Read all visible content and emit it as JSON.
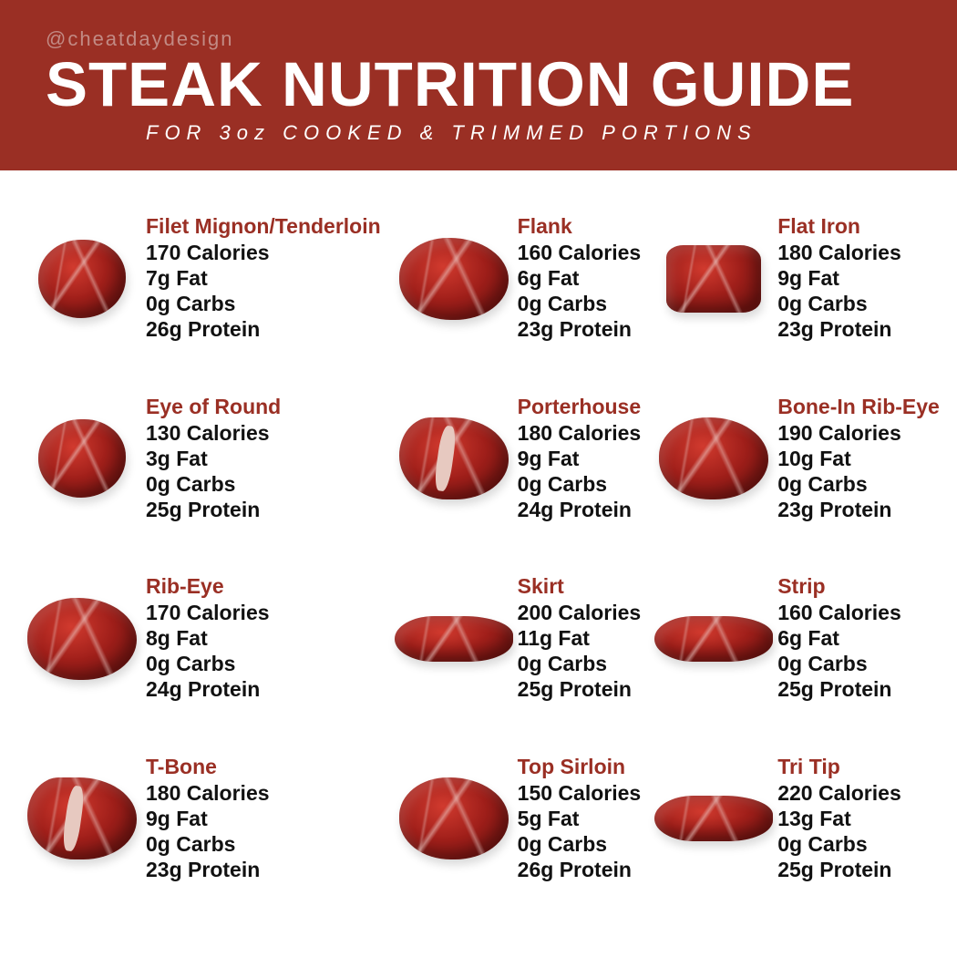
{
  "header": {
    "handle": "@cheatdaydesign",
    "title": "STEAK NUTRITION GUIDE",
    "subtitle": "FOR 3oz COOKED & TRIMMED PORTIONS",
    "background_color": "#9a2f24",
    "handle_color": "#c28a84",
    "title_color": "#ffffff",
    "title_fontsize": 69,
    "subtitle_fontsize": 22
  },
  "layout": {
    "type": "infographic",
    "columns": 3,
    "rows": 4,
    "background_color": "#ffffff",
    "name_color": "#9a2f24",
    "stat_color": "#111111",
    "name_fontsize": 23,
    "stat_fontsize": 23,
    "steak_base_colors": [
      "#d13a2e",
      "#a01f1a",
      "#7a1512"
    ],
    "marbling_color": "#e7c9c0"
  },
  "cuts": [
    {
      "name": "Filet Mignon/Tenderloin",
      "calories": "170 Calories",
      "fat": "7g Fat",
      "carbs": "0g Carbs",
      "protein": "26g Protein",
      "shape": "round"
    },
    {
      "name": "Flank",
      "calories": "160 Calories",
      "fat": "6g Fat",
      "carbs": "0g Carbs",
      "protein": "23g Protein",
      "shape": ""
    },
    {
      "name": "Flat Iron",
      "calories": "180 Calories",
      "fat": "9g Fat",
      "carbs": "0g Carbs",
      "protein": "23g Protein",
      "shape": "square"
    },
    {
      "name": "Eye of Round",
      "calories": "130 Calories",
      "fat": "3g Fat",
      "carbs": "0g Carbs",
      "protein": "25g Protein",
      "shape": "round"
    },
    {
      "name": "Porterhouse",
      "calories": "180 Calories",
      "fat": "9g Fat",
      "carbs": "0g Carbs",
      "protein": "24g Protein",
      "shape": "tbone"
    },
    {
      "name": "Bone-In Rib-Eye",
      "calories": "190 Calories",
      "fat": "10g Fat",
      "carbs": "0g Carbs",
      "protein": "23g Protein",
      "shape": ""
    },
    {
      "name": "Rib-Eye",
      "calories": "170 Calories",
      "fat": "8g Fat",
      "carbs": "0g Carbs",
      "protein": "24g Protein",
      "shape": ""
    },
    {
      "name": "Skirt",
      "calories": "200 Calories",
      "fat": "11g Fat",
      "carbs": "0g Carbs",
      "protein": "25g Protein",
      "shape": "long"
    },
    {
      "name": "Strip",
      "calories": "160 Calories",
      "fat": "6g Fat",
      "carbs": "0g Carbs",
      "protein": "25g Protein",
      "shape": "long"
    },
    {
      "name": "T-Bone",
      "calories": "180 Calories",
      "fat": "9g Fat",
      "carbs": "0g Carbs",
      "protein": "23g Protein",
      "shape": "tbone"
    },
    {
      "name": "Top Sirloin",
      "calories": "150 Calories",
      "fat": "5g Fat",
      "carbs": "0g Carbs",
      "protein": "26g Protein",
      "shape": ""
    },
    {
      "name": "Tri Tip",
      "calories": "220 Calories",
      "fat": "13g Fat",
      "carbs": "0g Carbs",
      "protein": "25g Protein",
      "shape": "long"
    }
  ]
}
